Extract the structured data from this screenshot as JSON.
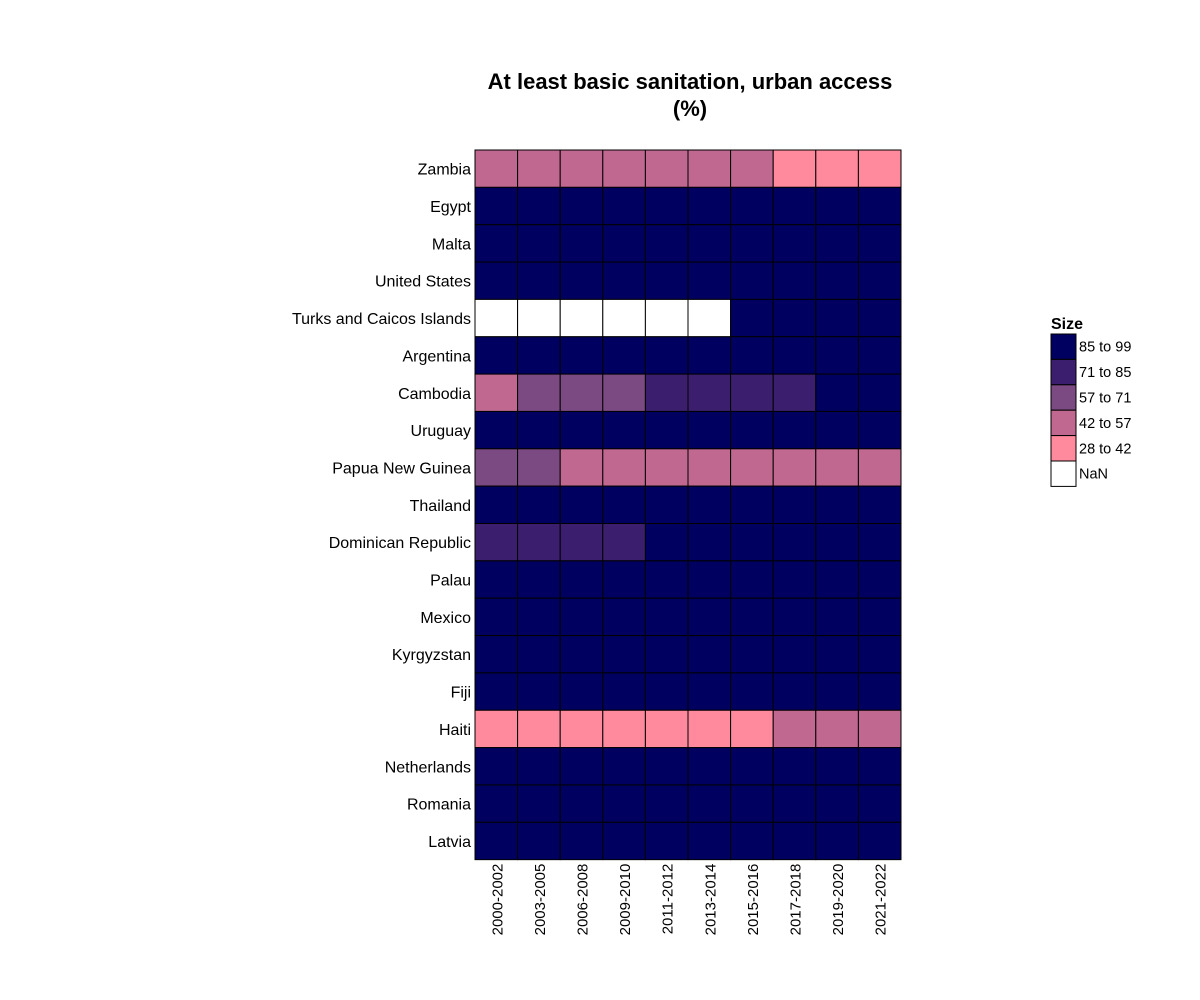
{
  "chart_data": {
    "type": "heatmap",
    "title": "At least basic sanitation, urban access\n(%)",
    "x": [
      "2000-2002",
      "2003-2005",
      "2006-2008",
      "2009-2010",
      "2011-2012",
      "2013-2014",
      "2015-2016",
      "2017-2018",
      "2019-2020",
      "2021-2022"
    ],
    "y": [
      "Zambia",
      "Egypt",
      "Malta",
      "United States",
      "Turks and Caicos Islands",
      "Argentina",
      "Cambodia",
      "Uruguay",
      "Papua New Guinea",
      "Thailand",
      "Dominican Republic",
      "Palau",
      "Mexico",
      "Kyrgyzstan",
      "Fiji",
      "Haiti",
      "Netherlands",
      "Romania",
      "Latvia"
    ],
    "bins": [
      {
        "label": "85 to 99",
        "color": "#000060"
      },
      {
        "label": "71 to 85",
        "color": "#3b1f6e"
      },
      {
        "label": "57 to 71",
        "color": "#7c4a82"
      },
      {
        "label": "42 to 57",
        "color": "#c06890"
      },
      {
        "label": "28 to 42",
        "color": "#ff8a9e"
      },
      {
        "label": "NaN",
        "color": "#ffffff"
      }
    ],
    "values": [
      [
        50,
        50,
        50,
        50,
        50,
        50,
        50,
        35,
        35,
        35
      ],
      [
        95,
        95,
        95,
        96,
        96,
        97,
        97,
        97,
        97,
        97
      ],
      [
        99,
        99,
        99,
        99,
        99,
        99,
        99,
        99,
        99,
        99
      ],
      [
        99,
        99,
        99,
        99,
        99,
        99,
        99,
        99,
        99,
        99
      ],
      [
        null,
        null,
        null,
        null,
        null,
        null,
        88,
        88,
        88,
        88
      ],
      [
        94,
        94,
        95,
        95,
        95,
        96,
        96,
        96,
        96,
        96
      ],
      [
        50,
        64,
        66,
        68,
        74,
        78,
        82,
        84,
        87,
        90
      ],
      [
        95,
        95,
        96,
        96,
        96,
        97,
        97,
        97,
        97,
        97
      ],
      [
        60,
        58,
        55,
        55,
        55,
        54,
        54,
        54,
        54,
        54
      ],
      [
        90,
        91,
        92,
        93,
        93,
        94,
        94,
        95,
        95,
        95
      ],
      [
        80,
        82,
        83,
        84,
        86,
        87,
        88,
        88,
        89,
        89
      ],
      [
        90,
        91,
        92,
        93,
        94,
        94,
        95,
        95,
        95,
        95
      ],
      [
        88,
        89,
        90,
        91,
        92,
        92,
        93,
        93,
        93,
        93
      ],
      [
        93,
        93,
        94,
        94,
        94,
        95,
        95,
        95,
        95,
        95
      ],
      [
        90,
        90,
        91,
        92,
        92,
        93,
        93,
        93,
        93,
        93
      ],
      [
        33,
        34,
        35,
        36,
        37,
        38,
        40,
        43,
        44,
        45
      ],
      [
        98,
        98,
        98,
        98,
        98,
        98,
        98,
        98,
        98,
        98
      ],
      [
        90,
        91,
        92,
        93,
        94,
        94,
        95,
        96,
        96,
        96
      ],
      [
        88,
        89,
        90,
        91,
        92,
        93,
        93,
        94,
        94,
        94
      ]
    ],
    "legend": {
      "title": "Size",
      "position": "right"
    },
    "grid": false
  }
}
